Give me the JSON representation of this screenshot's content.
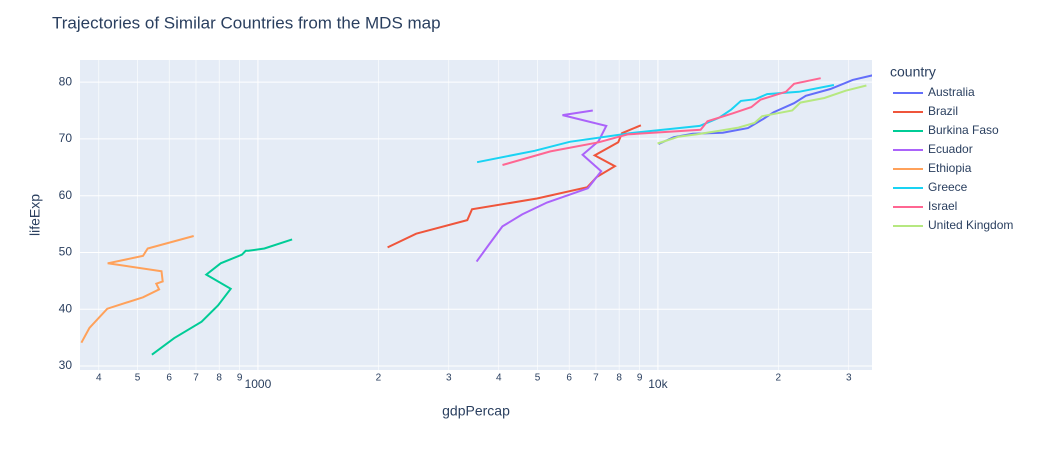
{
  "chart_data": {
    "type": "line",
    "title": "Trajectories of Similar Countries from the MDS map",
    "x_label": "gdpPercap",
    "y_label": "lifeExp",
    "legend_title": "country",
    "xscale": "log",
    "grid": true,
    "legend_position": "right",
    "xlim": [
      359,
      34300
    ],
    "ylim": [
      29.3,
      83.9
    ],
    "xticks": [
      {
        "value": 400,
        "label": "4"
      },
      {
        "value": 500,
        "label": "5"
      },
      {
        "value": 600,
        "label": "6"
      },
      {
        "value": 700,
        "label": "7"
      },
      {
        "value": 800,
        "label": "8"
      },
      {
        "value": 900,
        "label": "9"
      },
      1000,
      {
        "value": 2000,
        "label": "2"
      },
      {
        "value": 3000,
        "label": "3"
      },
      {
        "value": 4000,
        "label": "4"
      },
      {
        "value": 5000,
        "label": "5"
      },
      {
        "value": 6000,
        "label": "6"
      },
      {
        "value": 7000,
        "label": "7"
      },
      {
        "value": 8000,
        "label": "8"
      },
      {
        "value": 9000,
        "label": "9"
      },
      {
        "value": 10000,
        "label": "10k"
      },
      {
        "value": 20000,
        "label": "2"
      },
      {
        "value": 30000,
        "label": "3"
      }
    ],
    "yticks": [
      30,
      40,
      50,
      60,
      70,
      80
    ],
    "series": [
      {
        "name": "Australia",
        "color": "#636efa",
        "x": [
          10040,
          10950,
          12217,
          14526,
          16789,
          18334,
          19477,
          21889,
          23425,
          26998,
          30688,
          34435
        ],
        "values": [
          69.1,
          70.3,
          70.9,
          71.1,
          71.9,
          73.5,
          74.7,
          76.3,
          77.6,
          78.8,
          80.4,
          81.2
        ]
      },
      {
        "name": "Brazil",
        "color": "#EF553B",
        "x": [
          2109,
          2487,
          3337,
          3430,
          4986,
          6660,
          7031,
          7807,
          6950,
          7958,
          8131,
          9066
        ],
        "values": [
          50.9,
          53.3,
          55.7,
          57.6,
          59.5,
          61.5,
          63.3,
          65.2,
          67.1,
          69.4,
          71.0,
          72.4
        ]
      },
      {
        "name": "Burkina Faso",
        "color": "#00cc96",
        "x": [
          543,
          617,
          723,
          795,
          855,
          743,
          807,
          912,
          932,
          946,
          1038,
          1217
        ],
        "values": [
          32.0,
          34.9,
          37.8,
          40.7,
          43.6,
          46.1,
          48.1,
          49.6,
          50.3,
          50.3,
          50.7,
          52.3
        ]
      },
      {
        "name": "Ecuador",
        "color": "#ab63fa",
        "x": [
          3522,
          3781,
          4086,
          4579,
          5281,
          6680,
          7214,
          6482,
          7104,
          7430,
          5773,
          6873
        ],
        "values": [
          48.4,
          51.4,
          54.6,
          56.7,
          58.8,
          61.3,
          64.3,
          67.2,
          69.6,
          72.3,
          74.2,
          75.0
        ]
      },
      {
        "name": "Ethiopia",
        "color": "#FFA15A",
        "x": [
          362,
          379,
          420,
          516,
          566,
          557,
          578,
          574,
          421,
          516,
          530,
          691
        ],
        "values": [
          34.1,
          36.7,
          40.1,
          42.1,
          43.5,
          44.5,
          44.9,
          46.7,
          48.1,
          49.4,
          50.7,
          52.9
        ]
      },
      {
        "name": "Greece",
        "color": "#19d3f3",
        "x": [
          3531,
          4916,
          6017,
          8513,
          12725,
          14196,
          15268,
          16121,
          17542,
          18748,
          22514,
          27538
        ],
        "values": [
          65.9,
          67.9,
          69.5,
          71.0,
          72.3,
          73.7,
          75.2,
          76.7,
          77.0,
          77.9,
          78.3,
          79.5
        ]
      },
      {
        "name": "Israel",
        "color": "#FF6692",
        "x": [
          4087,
          5385,
          7106,
          8394,
          12787,
          13307,
          15367,
          17123,
          18052,
          20897,
          21906,
          25523
        ],
        "values": [
          65.4,
          67.8,
          69.4,
          70.8,
          71.6,
          73.1,
          74.5,
          75.6,
          76.9,
          78.3,
          79.7,
          80.7
        ]
      },
      {
        "name": "United Kingdom",
        "color": "#B6E880",
        "x": [
          9980,
          11283,
          12477,
          14143,
          15895,
          17429,
          18232,
          21665,
          22705,
          26075,
          29479,
          33203
        ],
        "values": [
          69.2,
          70.4,
          70.8,
          71.4,
          72.0,
          72.8,
          74.0,
          75.0,
          76.4,
          77.2,
          78.5,
          79.4
        ]
      }
    ]
  }
}
